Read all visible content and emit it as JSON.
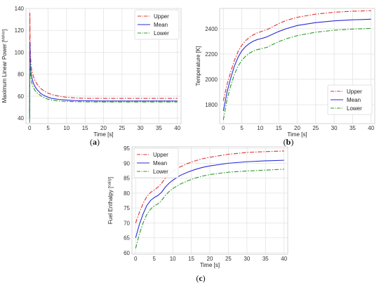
{
  "chart_data": [
    {
      "id": "a",
      "type": "line",
      "caption": "a",
      "xlabel": "Time [s]",
      "ylabel": "Maximum Linear Power",
      "ylabel_unit_num": "kW",
      "ylabel_unit_den": "m",
      "xlim": [
        -1,
        41
      ],
      "ylim": [
        35,
        140
      ],
      "xticks": [
        0,
        5,
        10,
        15,
        20,
        25,
        30,
        35,
        40
      ],
      "yticks": [
        40,
        60,
        80,
        100,
        120,
        140
      ],
      "grid": true,
      "legend": "top-right",
      "series": [
        {
          "name": "Upper",
          "color": "#e03030",
          "dash": "dashdot",
          "x": [
            0,
            0.05,
            0.12,
            0.2,
            0.35,
            0.5,
            1,
            1.5,
            2,
            3,
            4,
            5,
            6,
            8,
            10,
            12,
            15,
            20,
            25,
            30,
            35,
            40
          ],
          "y": [
            45,
            136,
            110,
            98,
            90,
            85,
            78,
            74,
            71,
            67,
            64.5,
            62.8,
            61.5,
            60,
            59,
            58.5,
            58,
            58,
            58,
            58,
            58,
            58
          ]
        },
        {
          "name": "Mean",
          "color": "#2b2bd9",
          "dash": "solid",
          "x": [
            0,
            0.05,
            0.12,
            0.2,
            0.35,
            0.5,
            1,
            1.5,
            2,
            3,
            4,
            5,
            6,
            8,
            10,
            12,
            15,
            20,
            25,
            30,
            35,
            40
          ],
          "y": [
            40,
            110,
            95,
            87,
            82,
            78,
            72,
            68.5,
            66,
            62.5,
            60.5,
            59,
            58,
            57,
            56.5,
            56,
            55.8,
            55.6,
            55.6,
            55.6,
            55.6,
            55.6
          ]
        },
        {
          "name": "Lower",
          "color": "#2a9a2a",
          "dash": "dashdot",
          "x": [
            0,
            0.05,
            0.12,
            0.2,
            0.35,
            0.5,
            1,
            1.5,
            2,
            3,
            4,
            5,
            6,
            8,
            10,
            12,
            15,
            20,
            25,
            30,
            35,
            40
          ],
          "y": [
            36,
            92,
            85,
            80,
            76,
            73,
            68,
            65,
            63,
            60.5,
            58.5,
            57.2,
            56.4,
            55.6,
            55.2,
            55,
            54.8,
            54.7,
            54.7,
            54.7,
            54.7,
            54.7
          ]
        }
      ]
    },
    {
      "id": "b",
      "type": "line",
      "caption": "b",
      "xlabel": "Time [s]",
      "ylabel": "Temperature [K]",
      "xlim": [
        -1,
        41
      ],
      "ylim": [
        1650,
        2560
      ],
      "xticks": [
        0,
        5,
        10,
        15,
        20,
        25,
        30,
        35,
        40
      ],
      "yticks": [
        1800,
        2000,
        2200,
        2400
      ],
      "grid": true,
      "legend": "bottom-right",
      "series": [
        {
          "name": "Upper",
          "color": "#e03030",
          "dash": "dashdot",
          "x": [
            0,
            1,
            2,
            3,
            4,
            5,
            6,
            7,
            8,
            9,
            10,
            11,
            12,
            13,
            14,
            15,
            17,
            20,
            25,
            30,
            35,
            40
          ],
          "y": [
            1830,
            1960,
            2060,
            2150,
            2220,
            2270,
            2305,
            2330,
            2350,
            2365,
            2375,
            2385,
            2395,
            2410,
            2425,
            2440,
            2465,
            2490,
            2515,
            2530,
            2538,
            2542
          ]
        },
        {
          "name": "Mean",
          "color": "#2b2bd9",
          "dash": "solid",
          "x": [
            0,
            1,
            2,
            3,
            4,
            5,
            6,
            7,
            8,
            9,
            10,
            11,
            12,
            13,
            14,
            15,
            17,
            20,
            25,
            30,
            35,
            40
          ],
          "y": [
            1750,
            1900,
            2010,
            2105,
            2175,
            2225,
            2258,
            2282,
            2300,
            2312,
            2320,
            2328,
            2338,
            2352,
            2365,
            2378,
            2400,
            2425,
            2448,
            2462,
            2470,
            2475
          ]
        },
        {
          "name": "Lower",
          "color": "#2a9a2a",
          "dash": "dashdot",
          "x": [
            0,
            1,
            2,
            3,
            4,
            5,
            6,
            7,
            8,
            9,
            10,
            11,
            12,
            13,
            14,
            15,
            17,
            20,
            25,
            30,
            35,
            40
          ],
          "y": [
            1680,
            1840,
            1950,
            2040,
            2105,
            2150,
            2182,
            2205,
            2222,
            2233,
            2240,
            2247,
            2255,
            2270,
            2284,
            2298,
            2320,
            2345,
            2372,
            2388,
            2397,
            2402
          ]
        }
      ]
    },
    {
      "id": "c",
      "type": "line",
      "caption": "c",
      "xlabel": "Time [s]",
      "ylabel": "Fuel Enthalpy",
      "ylabel_unit_num": "cal",
      "ylabel_unit_den": "g",
      "xlim": [
        -1,
        41
      ],
      "ylim": [
        59.5,
        95.5
      ],
      "xticks": [
        0,
        5,
        10,
        15,
        20,
        25,
        30,
        35,
        40
      ],
      "yticks": [
        60,
        65,
        70,
        75,
        80,
        85,
        90,
        95
      ],
      "grid": true,
      "legend": "top-left",
      "series": [
        {
          "name": "Upper",
          "color": "#e03030",
          "dash": "dashdot",
          "x": [
            0,
            1,
            2,
            3,
            4,
            5,
            6,
            7,
            8,
            9,
            10,
            12,
            14,
            16,
            18,
            20,
            25,
            30,
            35,
            40
          ],
          "y": [
            70,
            73.5,
            76.5,
            78.8,
            80.2,
            81,
            82,
            83.3,
            85,
            86.3,
            87.3,
            88.8,
            89.9,
            90.8,
            91.5,
            92,
            93,
            93.6,
            93.9,
            94.1
          ]
        },
        {
          "name": "Mean",
          "color": "#2b2bd9",
          "dash": "solid",
          "x": [
            0,
            1,
            2,
            3,
            4,
            5,
            6,
            7,
            8,
            9,
            10,
            12,
            14,
            16,
            18,
            20,
            25,
            30,
            35,
            40
          ],
          "y": [
            65,
            69.5,
            73,
            75.8,
            77.5,
            78.5,
            79.2,
            80.3,
            82,
            83.3,
            84.3,
            85.9,
            87,
            87.9,
            88.6,
            89.1,
            90,
            90.5,
            90.8,
            91
          ]
        },
        {
          "name": "Lower",
          "color": "#2a9a2a",
          "dash": "dashdot",
          "x": [
            0,
            1,
            2,
            3,
            4,
            5,
            6,
            7,
            8,
            9,
            10,
            12,
            14,
            16,
            18,
            20,
            25,
            30,
            35,
            40
          ],
          "y": [
            61.5,
            66.3,
            70,
            72.8,
            74.6,
            75.7,
            76.4,
            77.5,
            79.2,
            80.5,
            81.5,
            83,
            84.1,
            85,
            85.7,
            86.2,
            87,
            87.4,
            87.7,
            88
          ]
        }
      ]
    }
  ]
}
